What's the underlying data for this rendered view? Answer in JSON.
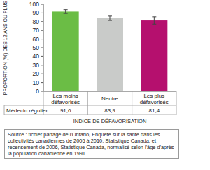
{
  "chart_data": {
    "type": "bar",
    "y_label": "PROPORTION (%) DES 12 ANS OU PLUS",
    "x_label": "INDICE DE DÉFAVORISATION",
    "categories": [
      "Les moins défavorisés",
      "Neutre",
      "Les plus défavorisés"
    ],
    "series": [
      {
        "name": "Médecin régulier",
        "values": [
          91.6,
          83.9,
          81.4
        ],
        "value_labels": [
          "91,6",
          "83,9",
          "81,4"
        ],
        "errors": [
          2.2,
          2.5,
          4.2
        ],
        "colors": [
          "#6bbd45",
          "#c9cbc9",
          "#b5106e"
        ]
      }
    ],
    "ylim": [
      0,
      100
    ],
    "yticks": [
      0,
      10,
      20,
      30,
      40,
      50,
      60,
      70,
      80,
      90,
      100
    ],
    "grid": false,
    "data_labels": true,
    "annotations": [
      "Source : fichier partagé de l'Ontario, Enquête sur la santé dans les collectivités canadiennes de 2005 à 2010, Statistique Canada; et recensement de 2006, Statistique Canada, normalisé selon l'âge d'après la population canadienne en 1991"
    ]
  }
}
